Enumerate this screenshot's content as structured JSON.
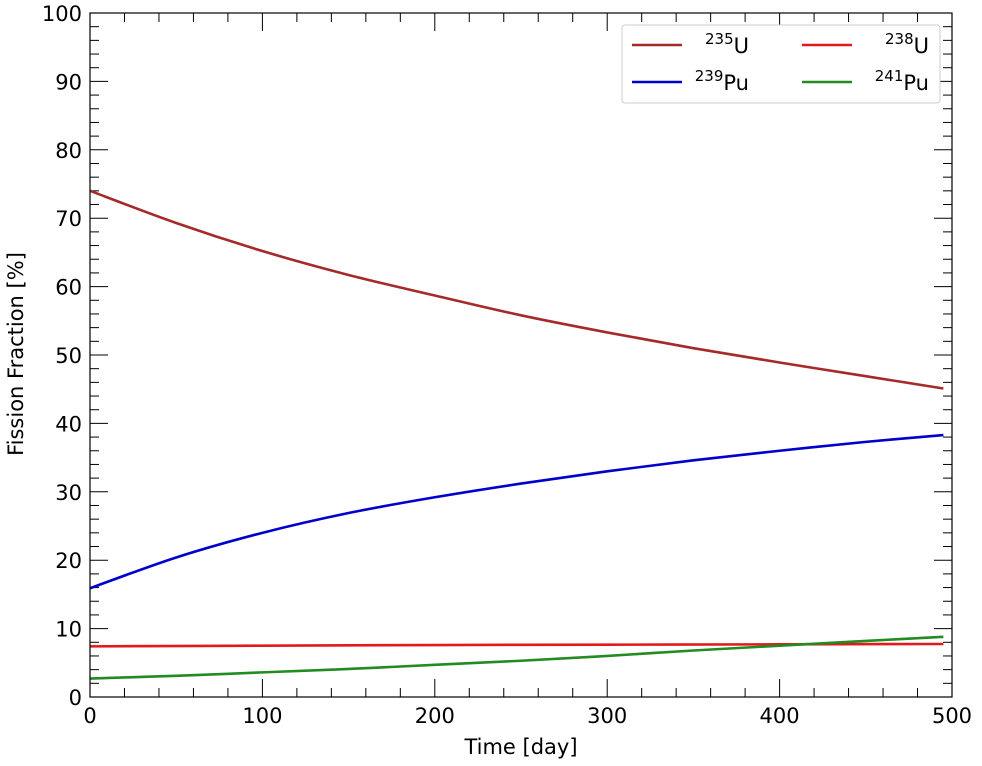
{
  "chart_data": {
    "type": "line",
    "xlabel": "Time [day]",
    "ylabel": "Fission Fraction [%]",
    "xlim": [
      0,
      500
    ],
    "ylim": [
      0,
      100
    ],
    "xticks": [
      "0",
      "100",
      "200",
      "300",
      "400",
      "500"
    ],
    "yticks": [
      "0",
      "10",
      "20",
      "30",
      "40",
      "50",
      "60",
      "70",
      "80",
      "90",
      "100"
    ],
    "legend_position": "top-right",
    "series": [
      {
        "name": "U-235",
        "label_sup": "235",
        "label_base": "U",
        "color": "#a52a2a",
        "x": [
          0,
          50,
          100,
          150,
          200,
          250,
          300,
          350,
          400,
          450,
          495
        ],
        "y": [
          74.0,
          69.3,
          65.2,
          61.7,
          58.7,
          55.8,
          53.3,
          51.0,
          48.9,
          46.9,
          45.1
        ]
      },
      {
        "name": "U-238",
        "label_sup": "238",
        "label_base": "U",
        "color": "#e31a1c",
        "x": [
          0,
          100,
          200,
          300,
          400,
          495
        ],
        "y": [
          7.4,
          7.5,
          7.6,
          7.65,
          7.7,
          7.75
        ]
      },
      {
        "name": "Pu-239",
        "label_sup": "239",
        "label_base": "Pu",
        "color": "#0000cd",
        "x": [
          0,
          50,
          100,
          150,
          200,
          250,
          300,
          350,
          400,
          450,
          495
        ],
        "y": [
          15.9,
          20.4,
          24.0,
          26.9,
          29.2,
          31.2,
          33.0,
          34.6,
          36.0,
          37.3,
          38.3
        ]
      },
      {
        "name": "Pu-241",
        "label_sup": "241",
        "label_base": "Pu",
        "color": "#228b22",
        "x": [
          0,
          50,
          100,
          150,
          200,
          250,
          300,
          350,
          400,
          450,
          495
        ],
        "y": [
          2.7,
          3.1,
          3.6,
          4.1,
          4.7,
          5.3,
          6.0,
          6.8,
          7.5,
          8.2,
          8.8
        ]
      }
    ]
  }
}
